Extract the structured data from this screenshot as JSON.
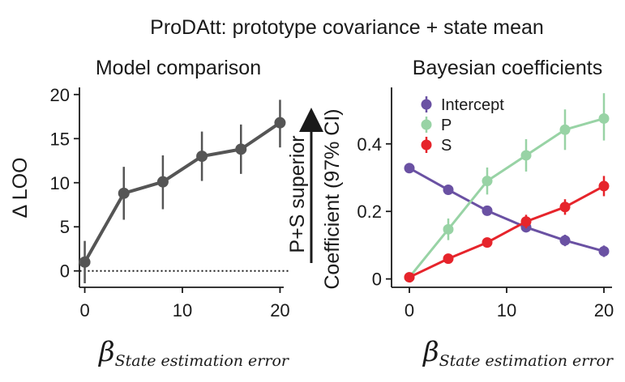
{
  "figure_title": "ProDAtt: prototype covariance + state mean",
  "annotation_arrow_label": "P+S superior",
  "chart_data": [
    {
      "type": "line",
      "title": "Model comparison",
      "xlabel_symbol": "β",
      "xlabel_subscript": "State estimation error",
      "ylabel": "Δ LOO",
      "xlim": [
        -1.5,
        21.5
      ],
      "ylim": [
        -2.2,
        21
      ],
      "xticks": [
        0,
        10,
        20
      ],
      "xtick_labels": [
        "0",
        "10",
        "20"
      ],
      "yticks": [
        0,
        5,
        10,
        15,
        20
      ],
      "ytick_labels": [
        "0",
        "5",
        "10",
        "15",
        "20"
      ],
      "reference_line": 0,
      "series": [
        {
          "name": "Δ LOO",
          "color": "#555555",
          "x": [
            0,
            4,
            8,
            12,
            16,
            20
          ],
          "y": [
            1.0,
            8.8,
            10.1,
            13.0,
            13.8,
            16.8
          ],
          "err_low": [
            -1.4,
            5.8,
            7.0,
            10.2,
            11.0,
            14.0
          ],
          "err_high": [
            3.4,
            11.8,
            13.1,
            15.8,
            16.6,
            19.4
          ]
        }
      ]
    },
    {
      "type": "line",
      "title": "Bayesian coefficients",
      "xlabel_symbol": "β",
      "xlabel_subscript": "State estimation error",
      "ylabel": "Coefficient (97% CI)",
      "xlim": [
        -1,
        21
      ],
      "ylim": [
        -0.02,
        0.56
      ],
      "xticks": [
        0,
        10,
        20
      ],
      "xtick_labels": [
        "0",
        "10",
        "20"
      ],
      "yticks": [
        0,
        0.2,
        0.4
      ],
      "ytick_labels": [
        "0",
        "0.2",
        "0.4"
      ],
      "legend_position": "top-left",
      "series": [
        {
          "name": "Intercept",
          "color": "#6a51a3",
          "x": [
            0,
            4,
            8,
            12,
            16,
            20
          ],
          "y": [
            0.328,
            0.264,
            0.202,
            0.153,
            0.114,
            0.082
          ],
          "err_low": [
            0.318,
            0.254,
            0.192,
            0.138,
            0.097,
            0.065
          ],
          "err_high": [
            0.338,
            0.274,
            0.212,
            0.168,
            0.131,
            0.099
          ]
        },
        {
          "name": "P",
          "color": "#98d3a5",
          "x": [
            0,
            4,
            8,
            12,
            16,
            20
          ],
          "y": [
            0.005,
            0.147,
            0.29,
            0.366,
            0.442,
            0.475
          ],
          "err_low": [
            -0.005,
            0.115,
            0.25,
            0.318,
            0.382,
            0.41
          ],
          "err_high": [
            0.015,
            0.179,
            0.33,
            0.414,
            0.502,
            0.55
          ]
        },
        {
          "name": "S",
          "color": "#e6242b",
          "x": [
            0,
            4,
            8,
            12,
            16,
            20
          ],
          "y": [
            0.005,
            0.06,
            0.108,
            0.17,
            0.213,
            0.275
          ],
          "err_low": [
            -0.005,
            0.05,
            0.095,
            0.15,
            0.19,
            0.245
          ],
          "err_high": [
            0.015,
            0.07,
            0.121,
            0.19,
            0.236,
            0.305
          ]
        }
      ]
    }
  ]
}
